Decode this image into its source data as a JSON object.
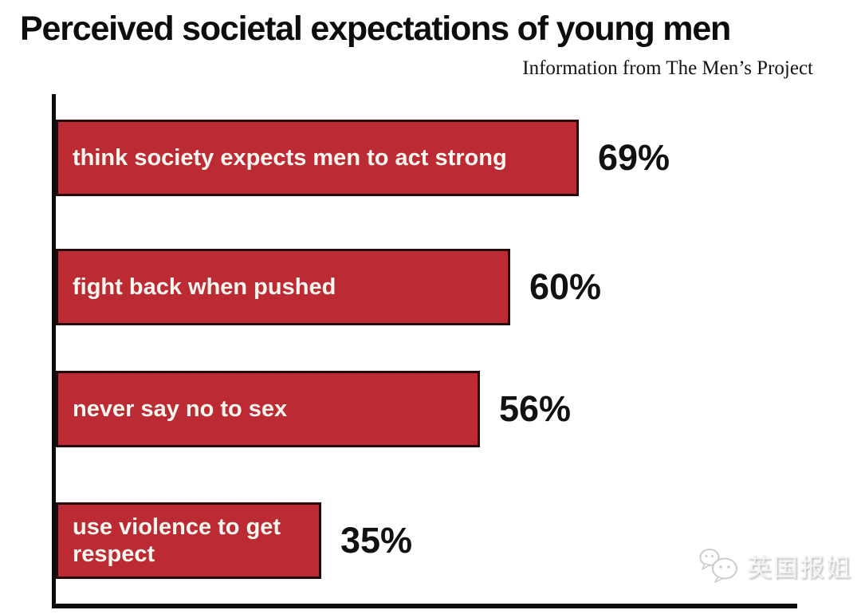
{
  "page": {
    "title": "Perceived societal expectations of young men",
    "subtitle": "Information from The Men’s Project",
    "watermark": "英国报姐"
  },
  "chart_data": {
    "type": "bar",
    "orientation": "horizontal",
    "title": "Perceived societal expectations of young men",
    "subtitle": "Information from The Men’s Project",
    "categories": [
      "think society expects men to act strong",
      "fight back when pushed",
      "never say no to sex",
      "use violence to get respect"
    ],
    "values": [
      69,
      60,
      56,
      35
    ],
    "value_labels": [
      "69%",
      "60%",
      "56%",
      "35%"
    ],
    "xlim": [
      0,
      100
    ],
    "grid": false,
    "legend": false,
    "bar_color": "#bc2b33",
    "bar_border_color": "#26090b",
    "axis_color": "#0b0b0b",
    "bar_text_color": "#faf6f0",
    "value_text_color": "#111111"
  }
}
